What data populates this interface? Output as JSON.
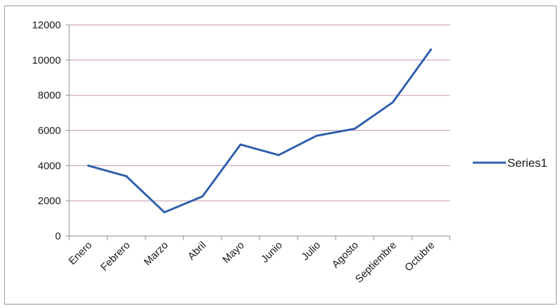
{
  "colors": {
    "series_line": "#2f5fae",
    "gridline": "#c9a3b8",
    "axis": "#8c8c8c"
  },
  "chart_data": {
    "type": "line",
    "title": "",
    "xlabel": "",
    "ylabel": "",
    "categories": [
      "Enero",
      "Febrero",
      "Marzo",
      "Abril",
      "Mayo",
      "Junio",
      "Julio",
      "Agosto",
      "Septiembre",
      "Octubre"
    ],
    "series": [
      {
        "name": "Series1",
        "values": [
          4000,
          3400,
          1350,
          2250,
          5200,
          4600,
          5700,
          6100,
          7600,
          10600
        ]
      }
    ],
    "ylim": [
      0,
      12000
    ],
    "yticks": [
      0,
      2000,
      4000,
      6000,
      8000,
      10000,
      12000
    ],
    "grid": true,
    "legend_position": "right"
  }
}
